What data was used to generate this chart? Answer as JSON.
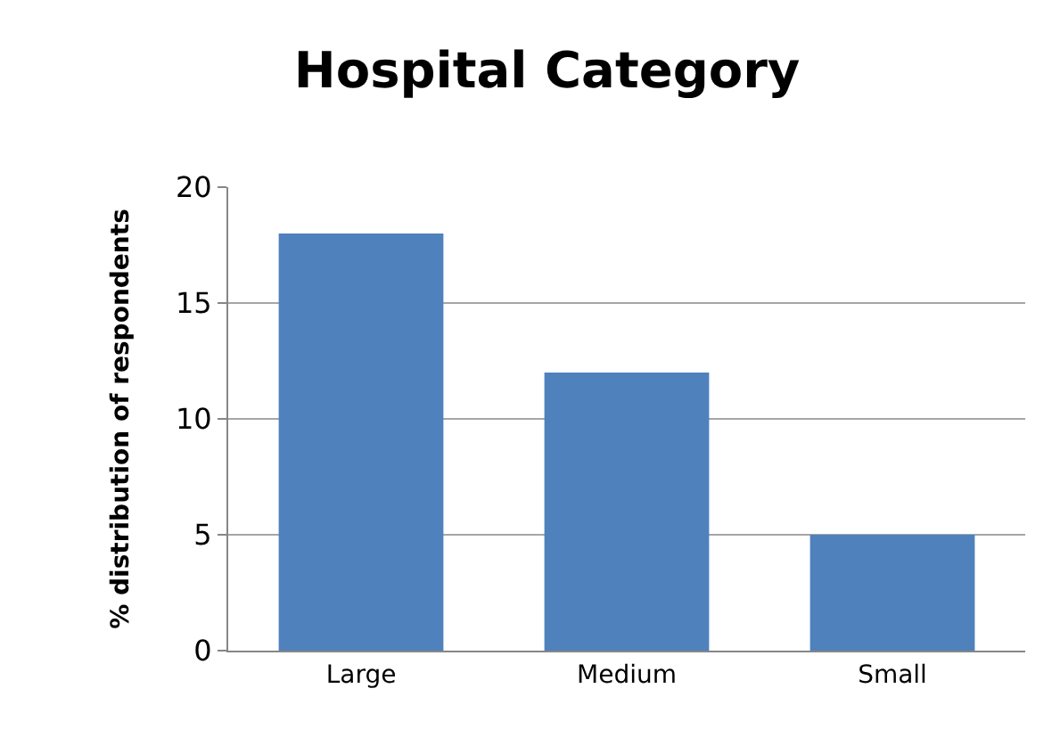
{
  "chart_data": {
    "type": "bar",
    "title": "Hospital Category",
    "ylabel": "% distribution of respondents",
    "categories": [
      "Large",
      "Medium",
      "Small"
    ],
    "values": [
      18,
      12,
      5
    ],
    "color": "#4f81bd",
    "ylim": [
      0,
      20
    ],
    "yticks": [
      0,
      5,
      10,
      15,
      20
    ],
    "grid": "y"
  }
}
